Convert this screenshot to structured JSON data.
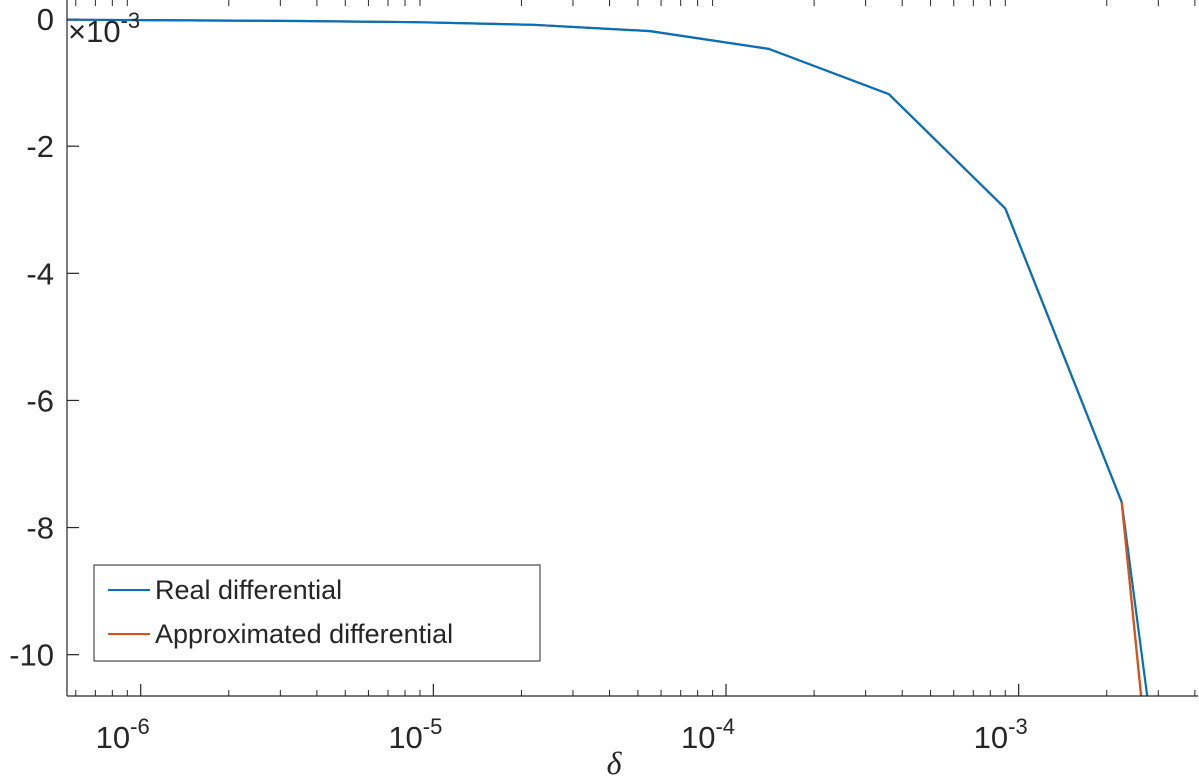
{
  "chart_data": {
    "type": "line",
    "xscale": "log",
    "xlim": [
      5.6e-07,
      0.0041
    ],
    "ylim": [
      -0.01065,
      0.0003
    ],
    "xlabel": "δ",
    "ylabel": "",
    "y_exponent_label": "×10",
    "y_exponent_power": "-3",
    "x_ticks": [
      1e-06,
      1e-05,
      0.0001,
      0.001
    ],
    "x_tick_labels": [
      {
        "base": "10",
        "exp": "-6"
      },
      {
        "base": "10",
        "exp": "-5"
      },
      {
        "base": "10",
        "exp": "-4"
      },
      {
        "base": "10",
        "exp": "-3"
      }
    ],
    "y_ticks": [
      0,
      -0.002,
      -0.004,
      -0.006,
      -0.008,
      -0.01
    ],
    "y_tick_labels": [
      "0",
      "-2",
      "-4",
      "-6",
      "-8",
      "-10"
    ],
    "grid": false,
    "legend_position": "bottom-left",
    "series": [
      {
        "name": "Real differential",
        "color": "#0072BD",
        "x": [
          5.6e-07,
          3.5e-06,
          8.8e-06,
          2.2e-05,
          5.5e-05,
          0.00014,
          0.00036,
          0.0009,
          0.00225,
          0.00275
        ],
        "y": [
          -1e-05,
          -3e-05,
          -5e-05,
          -9e-05,
          -0.00019,
          -0.00047,
          -0.00118,
          -0.00298,
          -0.0076,
          -0.01065
        ]
      },
      {
        "name": "Approximated differential",
        "color": "#D95319",
        "x": [
          5.6e-07,
          3.5e-06,
          8.8e-06,
          2.2e-05,
          5.5e-05,
          0.00014,
          0.00036,
          0.0009,
          0.00225,
          0.00262
        ],
        "y": [
          -1e-05,
          -3e-05,
          -5e-05,
          -9e-05,
          -0.00019,
          -0.00047,
          -0.00118,
          -0.00298,
          -0.0076,
          -0.01065
        ]
      }
    ]
  }
}
